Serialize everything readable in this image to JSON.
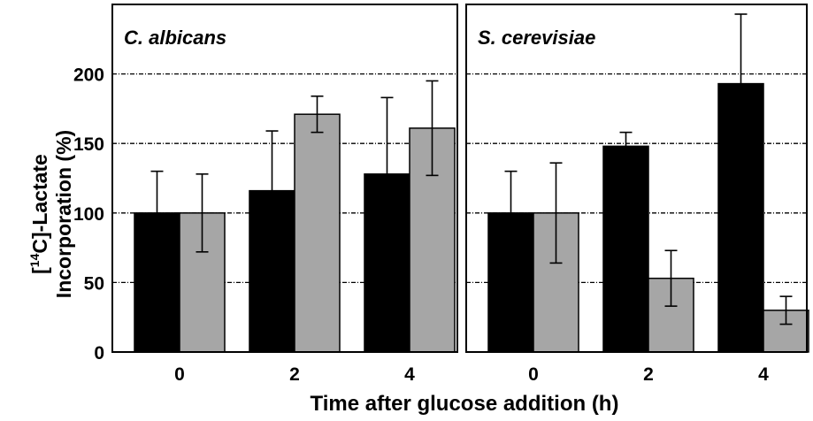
{
  "figure": {
    "ylabel_prefix": "[",
    "ylabel_sup": "14",
    "ylabel_suffix": "C]-Lactate",
    "ylabel_line2": "Incorporation (%)",
    "xlabel": "Time after glucose addition (h)"
  },
  "colors": {
    "series_black": "#000000",
    "series_gray": "#a6a6a6"
  },
  "chart_data": [
    {
      "type": "bar",
      "title": "C. albicans",
      "categories": [
        "0",
        "2",
        "4"
      ],
      "series": [
        {
          "values": [
            100,
            116,
            128
          ],
          "errors": [
            30,
            43,
            55
          ]
        },
        {
          "values": [
            100,
            171,
            161
          ],
          "errors": [
            28,
            13,
            34
          ]
        }
      ],
      "ylim": [
        0,
        250
      ],
      "yticks": [
        "0",
        "50",
        "100",
        "150",
        "200"
      ],
      "ytick_values": [
        0,
        50,
        100,
        150,
        200
      ],
      "grid": true
    },
    {
      "type": "bar",
      "title": "S. cerevisiae",
      "categories": [
        "0",
        "2",
        "4"
      ],
      "series": [
        {
          "values": [
            100,
            148,
            193
          ],
          "errors": [
            30,
            10,
            50
          ]
        },
        {
          "values": [
            100,
            53,
            30
          ],
          "errors": [
            36,
            20,
            10
          ]
        }
      ],
      "ylim": [
        0,
        250
      ],
      "grid": true
    }
  ]
}
